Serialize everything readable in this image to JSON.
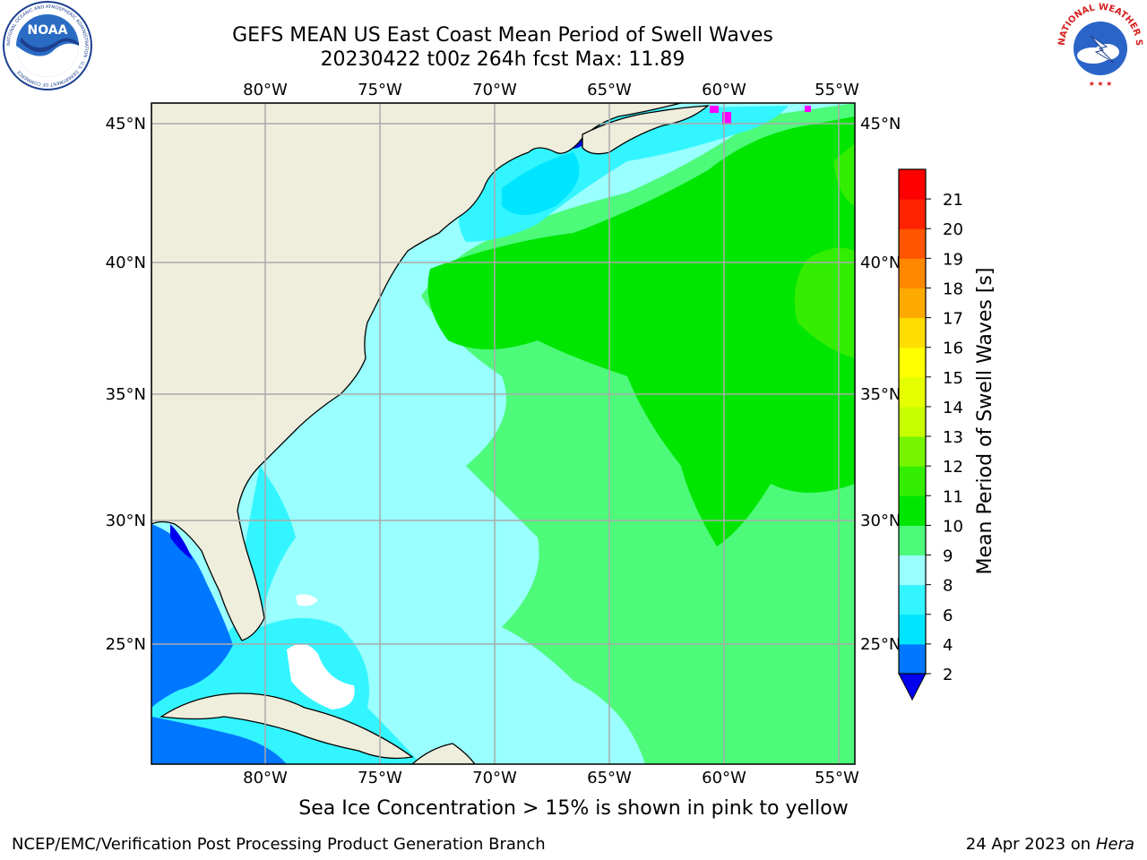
{
  "header": {
    "title_line1": "GEFS MEAN US East Coast Mean Period of Swell Waves",
    "title_line2": "20230422 t00z 264h fcst   Max: 11.89"
  },
  "map": {
    "lon_labels": [
      "80°W",
      "75°W",
      "70°W",
      "65°W",
      "60°W",
      "55°W"
    ],
    "lat_labels": [
      "45°N",
      "40°N",
      "35°N",
      "30°N",
      "25°N"
    ],
    "colors": {
      "land": "#efeedd",
      "coastline": "#000000",
      "gridline": "#aaaaaa"
    }
  },
  "colorbar": {
    "label": "Mean Period of Swell Waves [s]",
    "ticks": [
      "2",
      "4",
      "6",
      "8",
      "9",
      "10",
      "11",
      "12",
      "13",
      "14",
      "15",
      "16",
      "17",
      "18",
      "19",
      "20",
      "21"
    ],
    "bins": [
      {
        "from": 2,
        "to": 4,
        "color": "#0077ff"
      },
      {
        "from": 4,
        "to": 6,
        "color": "#00e5ff"
      },
      {
        "from": 6,
        "to": 8,
        "color": "#33f5ff"
      },
      {
        "from": 8,
        "to": 9,
        "color": "#99ffff"
      },
      {
        "from": 9,
        "to": 10,
        "color": "#4dfa7a"
      },
      {
        "from": 10,
        "to": 11,
        "color": "#00e600"
      },
      {
        "from": 11,
        "to": 12,
        "color": "#33ee00"
      },
      {
        "from": 12,
        "to": 13,
        "color": "#77f500"
      },
      {
        "from": 13,
        "to": 14,
        "color": "#c8ff00"
      },
      {
        "from": 14,
        "to": 15,
        "color": "#e6ff00"
      },
      {
        "from": 15,
        "to": 16,
        "color": "#ffff00"
      },
      {
        "from": 16,
        "to": 17,
        "color": "#ffdd00"
      },
      {
        "from": 17,
        "to": 18,
        "color": "#ffaa00"
      },
      {
        "from": 18,
        "to": 19,
        "color": "#ff8800"
      },
      {
        "from": 19,
        "to": 20,
        "color": "#ff5500"
      },
      {
        "from": 20,
        "to": 21,
        "color": "#ff2200"
      },
      {
        "from": 21,
        "to": 22,
        "color": "#ff0000"
      }
    ],
    "under_color": "#0000ee"
  },
  "logos": {
    "noaa_text": "NOAA",
    "noaa_ring_text": "NATIONAL OCEANIC AND ATMOSPHERIC ADMINISTRATION · U.S. DEPARTMENT OF COMMERCE",
    "nws_ring_text": "NATIONAL WEATHER SERVICE"
  },
  "footer": {
    "ice_note": "Sea Ice Concentration > 15% is shown in pink to yellow",
    "left": "NCEP/EMC/Verification Post Processing Product Generation Branch",
    "right_date": "24 Apr 2023 on ",
    "right_host": "Hera"
  }
}
